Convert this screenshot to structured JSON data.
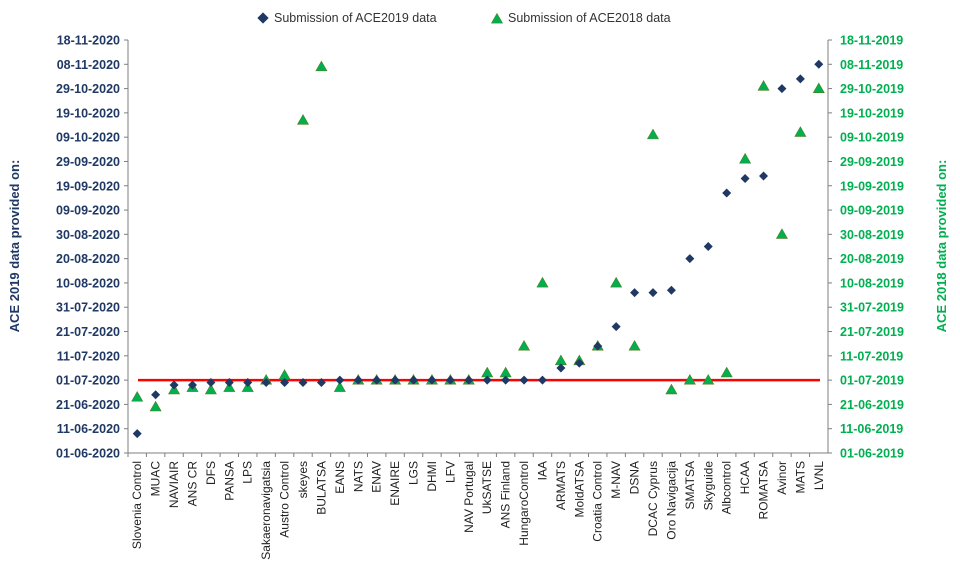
{
  "chart_data": {
    "type": "scatter",
    "categories": [
      "Slovenia Control",
      "MUAC",
      "NAVIAIR",
      "ANS CR",
      "DFS",
      "PANSA",
      "LPS",
      "Sakaeronavigatsia",
      "Austro Control",
      "skeyes",
      "BULATSA",
      "EANS",
      "NATS",
      "ENAV",
      "ENAIRE",
      "LGS",
      "DHMI",
      "LFV",
      "NAV Portugal",
      "UkSATSE",
      "ANS Finland",
      "HungaroControl",
      "IAA",
      "ARMATS",
      "MoldATSA",
      "Croatia Control",
      "M-NAV",
      "DSNA",
      "DCAC Cyprus",
      "Oro Navigacija",
      "SMATSA",
      "Skyguide",
      "Albcontrol",
      "HCAA",
      "ROMATSA",
      "Avinor",
      "MATS",
      "LVNL"
    ],
    "left_axis": {
      "title": "ACE 2019 data provided on:",
      "ticks": [
        "01-06-2020",
        "11-06-2020",
        "21-06-2020",
        "01-07-2020",
        "11-07-2020",
        "21-07-2020",
        "31-07-2020",
        "10-08-2020",
        "20-08-2020",
        "30-08-2020",
        "09-09-2020",
        "19-09-2020",
        "29-09-2020",
        "09-10-2020",
        "19-10-2020",
        "29-10-2020",
        "08-11-2020",
        "18-11-2020"
      ],
      "min": "2020-06-01",
      "max": "2020-11-18",
      "color": "#1f3864"
    },
    "right_axis": {
      "title": "ACE 2018 data provided on:",
      "ticks": [
        "01-06-2019",
        "11-06-2019",
        "21-06-2019",
        "01-07-2019",
        "11-07-2019",
        "21-07-2019",
        "31-07-2019",
        "10-08-2019",
        "20-08-2019",
        "30-08-2019",
        "09-09-2019",
        "19-09-2019",
        "29-09-2019",
        "09-10-2019",
        "19-10-2019",
        "29-10-2019",
        "08-11-2019",
        "18-11-2019"
      ],
      "min": "2019-06-01",
      "max": "2019-11-18",
      "color": "#00b050"
    },
    "reference_line": {
      "date": "2020-07-01",
      "color": "#ff0000"
    },
    "series": [
      {
        "name": "Submission of ACE2019 data",
        "axis": "left",
        "marker": "diamond",
        "color": "#1f3864",
        "values": [
          "2020-06-09",
          "2020-06-25",
          "2020-06-29",
          "2020-06-29",
          "2020-06-30",
          "2020-06-30",
          "2020-06-30",
          "2020-06-30",
          "2020-06-30",
          "2020-06-30",
          "2020-06-30",
          "2020-07-01",
          "2020-07-01",
          "2020-07-01",
          "2020-07-01",
          "2020-07-01",
          "2020-07-01",
          "2020-07-01",
          "2020-07-01",
          "2020-07-01",
          "2020-07-01",
          "2020-07-01",
          "2020-07-01",
          "2020-07-06",
          "2020-07-08",
          "2020-07-15",
          "2020-07-23",
          "2020-08-06",
          "2020-08-06",
          "2020-08-07",
          "2020-08-20",
          "2020-08-25",
          "2020-09-16",
          "2020-09-22",
          "2020-09-23",
          "2020-10-29",
          "2020-11-02",
          "2020-11-08"
        ]
      },
      {
        "name": "Submission of ACE2018 data",
        "axis": "right",
        "marker": "triangle",
        "color": "#00b050",
        "values": [
          "2019-06-24",
          "2019-06-20",
          "2019-06-27",
          "2019-06-28",
          "2019-06-27",
          "2019-06-28",
          "2019-06-28",
          "2019-07-01",
          "2019-07-03",
          "2019-10-16",
          "2019-11-07",
          "2019-06-28",
          "2019-07-01",
          "2019-07-01",
          "2019-07-01",
          "2019-07-01",
          "2019-07-01",
          "2019-07-01",
          "2019-07-01",
          "2019-07-04",
          "2019-07-04",
          "2019-07-15",
          "2019-08-10",
          "2019-07-09",
          "2019-07-09",
          "2019-07-15",
          "2019-08-10",
          "2019-07-15",
          "2019-10-10",
          "2019-06-27",
          "2019-07-01",
          "2019-07-01",
          "2019-07-04",
          "2019-09-30",
          "2019-10-30",
          "2019-08-30",
          "2019-10-11",
          "2019-10-29"
        ]
      }
    ],
    "legend": {
      "position": "top"
    },
    "grid": false
  }
}
